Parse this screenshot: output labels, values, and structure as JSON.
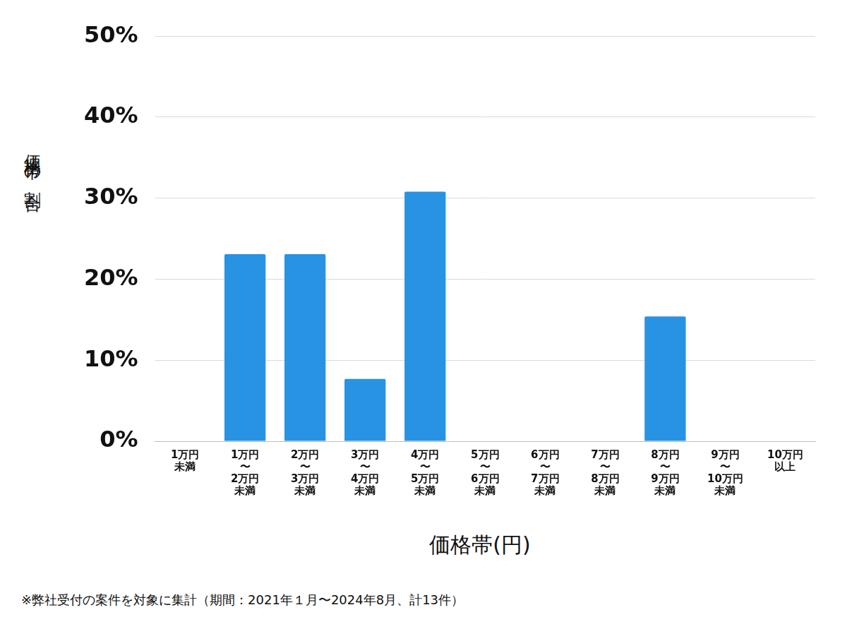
{
  "chart_data": {
    "type": "bar",
    "x_label": "価格帯(円)",
    "y_label": "価格帯の割合",
    "note": "※弊社受付の案件を対象に集計（期間：2021年１月〜2024年8月、計13件）",
    "categories": [
      "1万円\n未満",
      "1万円\n〜\n2万円\n未満",
      "2万円\n〜\n3万円\n未満",
      "3万円\n〜\n4万円\n未満",
      "4万円\n〜\n5万円\n未満",
      "5万円\n〜\n6万円\n未満",
      "6万円\n〜\n7万円\n未満",
      "7万円\n〜\n8万円\n未満",
      "8万円\n〜\n9万円\n未満",
      "9万円\n〜\n10万円\n未満",
      "10万円\n以上"
    ],
    "values": [
      0,
      23.1,
      23.1,
      7.7,
      30.8,
      0,
      0,
      0,
      15.4,
      0,
      0
    ],
    "color": "#2893e3",
    "ylim": [
      0,
      50
    ],
    "yticks": [
      {
        "value": 0,
        "label": "0%"
      },
      {
        "value": 10,
        "label": "10%"
      },
      {
        "value": 20,
        "label": "20%"
      },
      {
        "value": 30,
        "label": "30%"
      },
      {
        "value": 40,
        "label": "40%"
      },
      {
        "value": 50,
        "label": "50%"
      }
    ],
    "grid": true
  }
}
